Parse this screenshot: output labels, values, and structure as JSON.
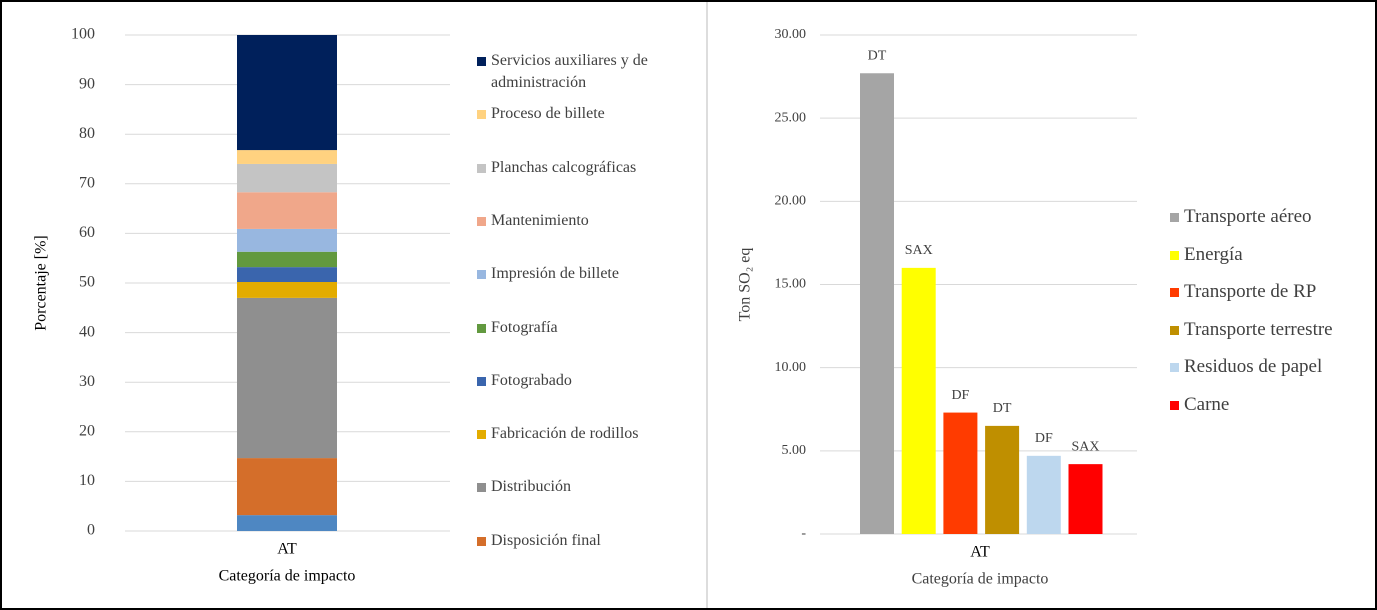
{
  "chart_data": [
    {
      "type": "stacked_bar",
      "ylabel": "Porcentaje [%]",
      "xlabel": "Categoría de impacto",
      "categories": [
        "AT"
      ],
      "ylim": [
        0,
        100
      ],
      "yticks": [
        0,
        10,
        20,
        30,
        40,
        50,
        60,
        70,
        80,
        90,
        100
      ],
      "grid": true,
      "legend": "right",
      "series": [
        {
          "name": null,
          "color": "#4e87c2",
          "values": [
            3.2
          ]
        },
        {
          "name": "Disposición final",
          "color": "#d46e2a",
          "values": [
            11.5
          ]
        },
        {
          "name": "Distribución",
          "color": "#8f8f8f",
          "values": [
            32.3
          ]
        },
        {
          "name": "Fabricación de rodillos",
          "color": "#e3ac00",
          "values": [
            3.2
          ]
        },
        {
          "name": "Fotograbado",
          "color": "#3a65ad",
          "values": [
            3.0
          ]
        },
        {
          "name": "Fotografía",
          "color": "#62993f",
          "values": [
            3.1
          ]
        },
        {
          "name": "Impresión de billete",
          "color": "#98b7e0",
          "values": [
            4.6
          ]
        },
        {
          "name": "Mantenimiento",
          "color": "#f0a78a",
          "values": [
            7.4
          ]
        },
        {
          "name": "Planchas calcográficas",
          "color": "#c4c4c4",
          "values": [
            5.7
          ]
        },
        {
          "name": "Proceso de billete",
          "color": "#ffd280",
          "values": [
            2.8
          ]
        },
        {
          "name": "Servicios auxiliares y de administración",
          "color": "#00205b",
          "values": [
            23.2
          ]
        }
      ]
    },
    {
      "type": "bar",
      "ylabel": "Ton SO₂ eq",
      "xlabel": "Categoría de impacto",
      "categories": [
        "AT"
      ],
      "ylim": [
        0,
        30
      ],
      "yticks": [
        {
          "value": 0,
          "label": "-"
        },
        {
          "value": 5,
          "label": "5.00"
        },
        {
          "value": 10,
          "label": "10.00"
        },
        {
          "value": 15,
          "label": "15.00"
        },
        {
          "value": 20,
          "label": "20.00"
        },
        {
          "value": 25,
          "label": "25.00"
        },
        {
          "value": 30,
          "label": "30.00"
        }
      ],
      "grid": true,
      "legend": "right",
      "series": [
        {
          "name": "Transporte aéreo",
          "color": "#a5a5a5",
          "values": [
            27.7
          ],
          "label": "DT"
        },
        {
          "name": "Energía",
          "color": "#ffff00",
          "values": [
            16.0
          ],
          "label": "SAX"
        },
        {
          "name": "Transporte de RP",
          "color": "#ff3b00",
          "values": [
            7.3
          ],
          "label": "DF"
        },
        {
          "name": "Transporte terrestre",
          "color": "#bf8f00",
          "values": [
            6.5
          ],
          "label": "DT"
        },
        {
          "name": "Residuos de papel",
          "color": "#bdd7ee",
          "values": [
            4.7
          ],
          "label": "DF"
        },
        {
          "name": "Carne",
          "color": "#ff0000",
          "values": [
            4.2
          ],
          "label": "SAX"
        }
      ]
    }
  ]
}
